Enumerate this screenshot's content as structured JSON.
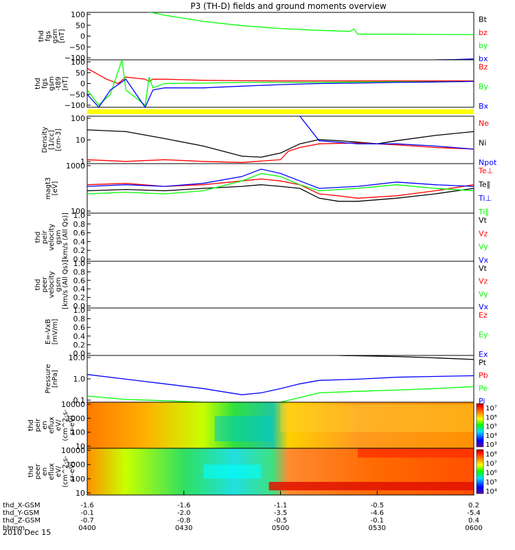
{
  "title": "P3 (TH-D) fields and ground moments overview",
  "date_label": "2010 Dec 15",
  "colors": {
    "black": "#000000",
    "red": "#ff0000",
    "green": "#00ff00",
    "blue": "#0000ff",
    "yellow": "#ffff00"
  },
  "time_axis": {
    "rows": [
      {
        "label": "thd_X-GSM",
        "values": [
          "-1.6",
          "-1.6",
          "-1.1",
          "-0.5",
          "0.2"
        ]
      },
      {
        "label": "thd_Y-GSM",
        "values": [
          "-0.1",
          "-2.0",
          "-3.5",
          "-4.6",
          "-5.4"
        ]
      },
      {
        "label": "thd_Z-GSM",
        "values": [
          "-0.7",
          "-0.8",
          "-0.5",
          "-0.1",
          "0.4"
        ]
      },
      {
        "label": "hhmm",
        "values": [
          "0400",
          "0430",
          "0500",
          "0530",
          "0600"
        ]
      }
    ]
  },
  "chart_data": [
    {
      "type": "line",
      "id": "fgs",
      "ylabel_lines": [
        "thd",
        "fgs",
        "gsm",
        "[nT]"
      ],
      "yticks": [
        "100",
        "50",
        "0",
        "−50",
        "−100"
      ],
      "ylim": [
        -100,
        100
      ],
      "legend": [
        {
          "text": "Bt",
          "color": "black"
        },
        {
          "text": "bz",
          "color": "red"
        },
        {
          "text": "by",
          "color": "green"
        },
        {
          "text": "bx",
          "color": "blue"
        }
      ],
      "series": [
        {
          "color": "green",
          "x": [
            0.16,
            0.165,
            0.2,
            0.3,
            0.4,
            0.5,
            0.6,
            0.68,
            0.69,
            0.7,
            0.8,
            0.9,
            1.0
          ],
          "y": [
            100,
            100,
            88,
            62,
            44,
            32,
            24,
            20,
            30,
            8,
            8,
            7,
            6
          ]
        },
        {
          "color": "blue",
          "x": [
            0.9,
            0.95,
            1.0
          ],
          "y": [
            -100,
            -99,
            -96
          ]
        }
      ]
    },
    {
      "type": "line",
      "id": "fgs_t89",
      "ylabel_lines": [
        "thd",
        "fgs",
        "gsm",
        "-t89",
        "[nT]"
      ],
      "yticks": [
        "100",
        "50",
        "0",
        "−50",
        "−100"
      ],
      "ylim": [
        -120,
        100
      ],
      "legend": [
        {
          "text": "Bz",
          "color": "red"
        },
        {
          "text": "By",
          "color": "green"
        },
        {
          "text": "Bx",
          "color": "blue"
        }
      ],
      "series": [
        {
          "color": "red",
          "x": [
            0,
            0.05,
            0.08,
            0.1,
            0.15,
            0.16,
            0.17,
            0.2,
            0.3,
            0.4,
            0.5,
            0.6,
            0.7,
            0.8,
            0.9,
            1.0
          ],
          "y": [
            60,
            10,
            -10,
            20,
            10,
            0,
            10,
            10,
            5,
            3,
            2,
            2,
            2,
            2,
            2,
            2
          ]
        },
        {
          "color": "green",
          "x": [
            0,
            0.03,
            0.06,
            0.09,
            0.1,
            0.15,
            0.16,
            0.17,
            0.2,
            0.3,
            0.4,
            0.5,
            0.6,
            0.7,
            0.8,
            0.9,
            1.0
          ],
          "y": [
            -40,
            -110,
            -60,
            100,
            -40,
            -110,
            20,
            -30,
            -10,
            -8,
            -5,
            -5,
            -5,
            -3,
            -2,
            -2,
            0
          ]
        },
        {
          "color": "blue",
          "x": [
            0,
            0.03,
            0.06,
            0.1,
            0.15,
            0.17,
            0.2,
            0.3,
            0.4,
            0.5,
            0.6,
            0.7,
            0.8,
            0.9,
            1.0
          ],
          "y": [
            -60,
            -120,
            -40,
            10,
            -120,
            -40,
            -30,
            -30,
            -22,
            -15,
            -10,
            -8,
            -5,
            -3,
            0
          ]
        }
      ]
    },
    {
      "type": "line",
      "id": "density",
      "log": true,
      "ylabel_lines": [
        "Density",
        "[1/cc]",
        "[cm-3]"
      ],
      "yticks": [
        "100",
        "10",
        "1"
      ],
      "ylim": [
        0.3,
        150
      ],
      "legend": [
        {
          "text": "Ne",
          "color": "red"
        },
        {
          "text": "Ni",
          "color": "black"
        },
        {
          "text": "Npot",
          "color": "blue"
        }
      ],
      "series": [
        {
          "color": "black",
          "x": [
            0,
            0.1,
            0.2,
            0.3,
            0.4,
            0.45,
            0.5,
            0.55,
            0.6,
            0.65,
            0.7,
            0.75,
            0.8,
            0.9,
            1.0
          ],
          "y": [
            25,
            20,
            8,
            3,
            0.8,
            0.7,
            1.2,
            4,
            7,
            6,
            5,
            4,
            6,
            12,
            20
          ]
        },
        {
          "color": "red",
          "x": [
            0,
            0.1,
            0.2,
            0.3,
            0.4,
            0.5,
            0.52,
            0.55,
            0.6,
            0.7,
            0.8,
            0.9,
            1.0
          ],
          "y": [
            0.5,
            0.4,
            0.5,
            0.4,
            0.35,
            0.5,
            1.5,
            2.5,
            4,
            4.5,
            3.5,
            2.5,
            2
          ]
        },
        {
          "color": "blue",
          "x": [
            0.55,
            0.6,
            0.7,
            0.8,
            0.9,
            1.0
          ],
          "y": [
            150,
            6,
            4,
            4,
            3,
            2
          ]
        }
      ]
    },
    {
      "type": "line",
      "id": "temp",
      "log": true,
      "ylabel_lines": [
        "magt3",
        "[eV]"
      ],
      "yticks": [
        "1000",
        "100"
      ],
      "ylim": [
        50,
        5000
      ],
      "legend": [
        {
          "text": "Te⊥",
          "color": "red"
        },
        {
          "text": "Te∥",
          "color": "black"
        },
        {
          "text": "Ti⊥",
          "color": "blue"
        },
        {
          "text": "Ti∥",
          "color": "green"
        }
      ],
      "series": [
        {
          "color": "red",
          "x": [
            0,
            0.1,
            0.2,
            0.3,
            0.4,
            0.45,
            0.5,
            0.55,
            0.6,
            0.65,
            0.7,
            0.8,
            0.9,
            1.0
          ],
          "y": [
            700,
            800,
            600,
            700,
            1000,
            1200,
            1000,
            700,
            300,
            250,
            200,
            250,
            400,
            700
          ]
        },
        {
          "color": "black",
          "x": [
            0,
            0.1,
            0.2,
            0.3,
            0.4,
            0.45,
            0.5,
            0.55,
            0.6,
            0.65,
            0.7,
            0.8,
            0.9,
            1.0
          ],
          "y": [
            400,
            450,
            400,
            500,
            600,
            700,
            600,
            500,
            200,
            150,
            150,
            200,
            300,
            500
          ]
        },
        {
          "color": "blue",
          "x": [
            0,
            0.1,
            0.2,
            0.3,
            0.4,
            0.45,
            0.5,
            0.55,
            0.6,
            0.7,
            0.8,
            0.9,
            1.0
          ],
          "y": [
            600,
            700,
            600,
            800,
            1500,
            3000,
            2000,
            1000,
            500,
            600,
            900,
            700,
            600
          ]
        },
        {
          "color": "green",
          "x": [
            0,
            0.1,
            0.2,
            0.3,
            0.4,
            0.45,
            0.5,
            0.55,
            0.6,
            0.7,
            0.8,
            0.9,
            1.0
          ],
          "y": [
            300,
            350,
            300,
            400,
            1000,
            2000,
            1500,
            700,
            400,
            500,
            700,
            500,
            400
          ]
        }
      ]
    },
    {
      "type": "line",
      "id": "peir_v",
      "ylabel_lines": [
        "thd",
        "peir",
        "velocity",
        "gsm",
        "[km/s (All Qs)]"
      ],
      "yticks": [
        "1.0",
        "0.8",
        "0.6",
        "0.4",
        "0.2",
        "0.0"
      ],
      "ylim": [
        0,
        1
      ],
      "legend": [
        {
          "text": "Vt",
          "color": "black"
        },
        {
          "text": "Vz",
          "color": "red"
        },
        {
          "text": "Vy",
          "color": "green"
        },
        {
          "text": "Vx",
          "color": "blue"
        }
      ],
      "series": []
    },
    {
      "type": "line",
      "id": "peer_v",
      "ylabel_lines": [
        "thd",
        "peer",
        "velocity",
        "gsm",
        "[km/s (All Qs)]"
      ],
      "yticks": [
        "1.0",
        "0.8",
        "0.6",
        "0.4",
        "0.2",
        "0.0"
      ],
      "ylim": [
        0,
        1
      ],
      "legend": [
        {
          "text": "Vt",
          "color": "black"
        },
        {
          "text": "Vz",
          "color": "red"
        },
        {
          "text": "Vy",
          "color": "green"
        },
        {
          "text": "Vx",
          "color": "blue"
        }
      ],
      "series": []
    },
    {
      "type": "line",
      "id": "efield",
      "ylabel_lines": [
        "E=-VxB",
        "[mV/m]"
      ],
      "yticks": [
        "1.0",
        "0.8",
        "0.6",
        "0.4",
        "0.2",
        "0.0"
      ],
      "ylim": [
        0,
        1
      ],
      "legend": [
        {
          "text": "Ez",
          "color": "red"
        },
        {
          "text": "Ey",
          "color": "green"
        },
        {
          "text": "Ex",
          "color": "blue"
        }
      ],
      "series": []
    },
    {
      "type": "line",
      "id": "pressure",
      "log": true,
      "ylabel_lines": [
        "Pressure",
        "[nPa]"
      ],
      "yticks": [
        "10.0",
        "1.0",
        "0.1"
      ],
      "ylim": [
        0.02,
        20
      ],
      "legend": [
        {
          "text": "Pt",
          "color": "black"
        },
        {
          "text": "Pb",
          "color": "red"
        },
        {
          "text": "Pe",
          "color": "green"
        },
        {
          "text": "Pi",
          "color": "blue"
        }
      ],
      "series": [
        {
          "color": "blue",
          "x": [
            0,
            0.1,
            0.2,
            0.3,
            0.4,
            0.45,
            0.5,
            0.55,
            0.6,
            0.7,
            0.8,
            0.9,
            1.0
          ],
          "y": [
            1.2,
            0.6,
            0.3,
            0.15,
            0.06,
            0.08,
            0.15,
            0.3,
            0.5,
            0.6,
            0.8,
            0.9,
            1.0
          ]
        },
        {
          "color": "green",
          "x": [
            0,
            0.1,
            0.2,
            0.3,
            0.4,
            0.5,
            0.55,
            0.6,
            0.7,
            0.8,
            0.9,
            1.0
          ],
          "y": [
            0.05,
            0.03,
            0.025,
            0.02,
            0.02,
            0.02,
            0.04,
            0.08,
            0.1,
            0.12,
            0.15,
            0.2
          ]
        },
        {
          "color": "black",
          "x": [
            0.65,
            0.8,
            0.9,
            1.0
          ],
          "y": [
            20,
            17,
            14,
            11
          ]
        }
      ]
    },
    {
      "type": "heatmap",
      "id": "peir_eflux",
      "ylabel_lines": [
        "thd",
        "peir",
        "en",
        "eflux",
        "eV/",
        "(cm^2-s-",
        "sr-eV)"
      ],
      "yticks": [
        "10000",
        "1000",
        "100",
        "10"
      ],
      "colorbar_ticks": [
        "10⁷",
        "10⁶",
        "10⁵",
        "10⁴",
        "10³"
      ]
    },
    {
      "type": "heatmap",
      "id": "peer_eflux",
      "ylabel_lines": [
        "thd",
        "peer",
        "en",
        "eflux",
        "eV/",
        "(cm^2-s-",
        "sr-eV)"
      ],
      "yticks": [
        "10000",
        "1000",
        "100",
        "10"
      ],
      "colorbar_ticks": [
        "10⁸",
        "10⁷",
        "10⁶",
        "10⁵",
        "10⁴"
      ]
    }
  ]
}
